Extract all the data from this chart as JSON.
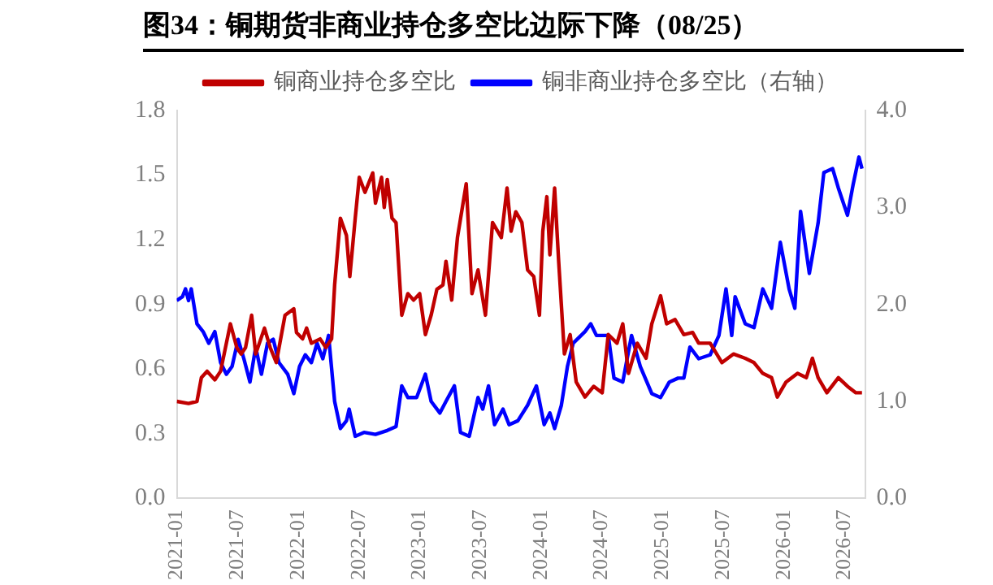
{
  "chart_data": {
    "type": "line",
    "title": "图34：铜期货非商业持仓多空比边际下降（08/25）",
    "xlim": [
      "2021-01",
      "2026-09"
    ],
    "xticks": [
      "2021-01",
      "2021-07",
      "2022-01",
      "2022-07",
      "2023-01",
      "2023-07",
      "2024-01",
      "2024-07",
      "2025-01",
      "2025-07",
      "2026-01",
      "2026-07"
    ],
    "ylim": [
      0,
      1.8
    ],
    "yticks": [
      {
        "value": 0,
        "label": "0.0"
      },
      0.3,
      0.6,
      0.9,
      1.2,
      1.5,
      1.8
    ],
    "y2lim": [
      0,
      4
    ],
    "y2ticks": [
      {
        "value": 0,
        "label": "0.0"
      },
      {
        "value": 1,
        "label": "1.0"
      },
      {
        "value": 2,
        "label": "2.0"
      },
      {
        "value": 3,
        "label": "3.0"
      },
      {
        "value": 4,
        "label": "4.0"
      }
    ],
    "legend": "top",
    "grid": false,
    "marker": "none",
    "series": [
      {
        "name": "铜商业持仓多空比",
        "color": "#c00000",
        "x": [
          "2021-01-01",
          "2021-02-06",
          "2021-03-01",
          "2021-03-14",
          "2021-04-01",
          "2021-04-24",
          "2021-05-11",
          "2021-06-10",
          "2021-06-29",
          "2021-07-12",
          "2021-07-25",
          "2021-08-13",
          "2021-08-25",
          "2021-09-21",
          "2021-10-08",
          "2021-10-26",
          "2021-11-22",
          "2021-12-18",
          "2021-12-26",
          "2022-01-14",
          "2022-01-26",
          "2022-02-10",
          "2022-03-06",
          "2022-03-23",
          "2022-04-10",
          "2022-04-19",
          "2022-05-06",
          "2022-05-24",
          "2022-06-04",
          "2022-06-20",
          "2022-07-02",
          "2022-07-19",
          "2022-08-12",
          "2022-08-20",
          "2022-09-08",
          "2022-09-16",
          "2022-09-25",
          "2022-10-09",
          "2022-10-21",
          "2022-11-08",
          "2022-11-26",
          "2022-12-13",
          "2022-12-31",
          "2023-01-18",
          "2023-02-05",
          "2023-02-22",
          "2023-03-10",
          "2023-03-19",
          "2023-04-06",
          "2023-04-23",
          "2023-05-19",
          "2023-06-06",
          "2023-06-24",
          "2023-07-16",
          "2023-08-07",
          "2023-09-03",
          "2023-09-20",
          "2023-10-02",
          "2023-10-16",
          "2023-11-04",
          "2023-11-21",
          "2023-12-09",
          "2023-12-26",
          "2024-01-06",
          "2024-01-18",
          "2024-01-27",
          "2024-02-11",
          "2024-02-23",
          "2024-03-10",
          "2024-03-27",
          "2024-04-15",
          "2024-05-11",
          "2024-06-07",
          "2024-07-02",
          "2024-07-20",
          "2024-08-16",
          "2024-09-03",
          "2024-09-20",
          "2024-10-16",
          "2024-11-12",
          "2024-11-29",
          "2024-12-25",
          "2025-01-13",
          "2025-02-08",
          "2025-03-04",
          "2025-03-30",
          "2025-04-18",
          "2025-05-22",
          "2025-06-27",
          "2025-08-01",
          "2025-09-06",
          "2025-10-02",
          "2025-10-28",
          "2025-11-24",
          "2025-12-11",
          "2026-01-07",
          "2026-02-11",
          "2026-03-07",
          "2026-03-25",
          "2026-04-12",
          "2026-05-08",
          "2026-06-12",
          "2026-07-09",
          "2026-08-04",
          "2026-08-22"
        ],
        "values": [
          0.45,
          0.44,
          0.45,
          0.56,
          0.59,
          0.55,
          0.59,
          0.81,
          0.7,
          0.67,
          0.7,
          0.85,
          0.67,
          0.79,
          0.7,
          0.63,
          0.85,
          0.88,
          0.77,
          0.74,
          0.79,
          0.72,
          0.74,
          0.7,
          0.74,
          0.99,
          1.3,
          1.22,
          1.03,
          1.3,
          1.49,
          1.42,
          1.51,
          1.37,
          1.49,
          1.35,
          1.48,
          1.3,
          1.28,
          0.85,
          0.95,
          0.92,
          0.95,
          0.76,
          0.85,
          0.97,
          0.99,
          1.1,
          0.92,
          1.21,
          1.46,
          0.95,
          1.06,
          0.85,
          1.28,
          1.21,
          1.44,
          1.24,
          1.33,
          1.28,
          1.06,
          1.03,
          0.85,
          1.24,
          1.4,
          1.13,
          1.44,
          1.1,
          0.67,
          0.76,
          0.54,
          0.47,
          0.52,
          0.49,
          0.76,
          0.72,
          0.81,
          0.58,
          0.72,
          0.65,
          0.81,
          0.94,
          0.81,
          0.83,
          0.76,
          0.77,
          0.72,
          0.72,
          0.63,
          0.67,
          0.65,
          0.63,
          0.58,
          0.56,
          0.47,
          0.54,
          0.58,
          0.56,
          0.65,
          0.56,
          0.49,
          0.56,
          0.52,
          0.49,
          0.49
        ]
      },
      {
        "name": "铜非商业持仓多空比（右轴）",
        "color": "#0000ff",
        "axis": "y2",
        "x": [
          "2021-01-01",
          "2021-01-18",
          "2021-01-27",
          "2021-02-06",
          "2021-02-14",
          "2021-03-01",
          "2021-03-19",
          "2021-04-06",
          "2021-04-24",
          "2021-05-11",
          "2021-05-28",
          "2021-06-15",
          "2021-07-03",
          "2021-07-20",
          "2021-08-08",
          "2021-08-25",
          "2021-09-12",
          "2021-09-30",
          "2021-10-17",
          "2021-11-04",
          "2021-11-30",
          "2021-12-18",
          "2022-01-05",
          "2022-01-22",
          "2022-02-10",
          "2022-02-27",
          "2022-03-14",
          "2022-04-01",
          "2022-04-19",
          "2022-05-06",
          "2022-05-24",
          "2022-06-02",
          "2022-06-20",
          "2022-07-16",
          "2022-08-20",
          "2022-09-25",
          "2022-10-21",
          "2022-11-08",
          "2022-11-26",
          "2022-12-22",
          "2023-01-18",
          "2023-02-05",
          "2023-03-01",
          "2023-03-19",
          "2023-04-14",
          "2023-05-02",
          "2023-05-28",
          "2023-06-24",
          "2023-07-08",
          "2023-07-25",
          "2023-08-13",
          "2023-09-08",
          "2023-09-26",
          "2023-10-22",
          "2023-11-21",
          "2023-12-17",
          "2024-01-10",
          "2024-01-27",
          "2024-02-11",
          "2024-03-01",
          "2024-03-19",
          "2024-04-06",
          "2024-05-11",
          "2024-05-28",
          "2024-06-15",
          "2024-07-02",
          "2024-07-20",
          "2024-08-07",
          "2024-09-03",
          "2024-09-29",
          "2024-10-25",
          "2024-11-29",
          "2024-12-25",
          "2025-01-21",
          "2025-02-17",
          "2025-03-04",
          "2025-03-22",
          "2025-04-18",
          "2025-05-22",
          "2025-06-18",
          "2025-07-09",
          "2025-07-26",
          "2025-08-06",
          "2025-09-06",
          "2025-10-02",
          "2025-10-28",
          "2025-11-24",
          "2025-12-20",
          "2026-01-16",
          "2026-02-03",
          "2026-02-20",
          "2026-03-16",
          "2026-04-12",
          "2026-04-29",
          "2026-05-25",
          "2026-06-12",
          "2026-07-09",
          "2026-07-26",
          "2026-08-13",
          "2026-08-22"
        ],
        "values": [
          2.04,
          2.08,
          2.16,
          2.04,
          2.16,
          1.8,
          1.72,
          1.6,
          1.72,
          1.4,
          1.28,
          1.36,
          1.64,
          1.44,
          1.2,
          1.56,
          1.28,
          1.6,
          1.64,
          1.4,
          1.28,
          1.08,
          1.36,
          1.48,
          1.4,
          1.6,
          1.44,
          1.68,
          1.0,
          0.72,
          0.8,
          0.92,
          0.64,
          0.68,
          0.66,
          0.7,
          0.74,
          1.16,
          1.04,
          1.04,
          1.28,
          1.0,
          0.88,
          1.0,
          1.16,
          0.68,
          0.64,
          1.04,
          0.92,
          1.16,
          0.76,
          0.92,
          0.76,
          0.8,
          0.96,
          1.16,
          0.76,
          0.88,
          0.72,
          0.96,
          1.36,
          1.6,
          1.72,
          1.8,
          1.68,
          1.68,
          1.68,
          1.24,
          1.2,
          1.68,
          1.36,
          1.08,
          1.04,
          1.2,
          1.24,
          1.24,
          1.56,
          1.44,
          1.48,
          1.68,
          2.16,
          1.68,
          2.08,
          1.8,
          1.76,
          2.16,
          1.96,
          2.64,
          2.16,
          1.96,
          2.96,
          2.32,
          2.84,
          3.36,
          3.4,
          3.2,
          2.92,
          3.24,
          3.52,
          3.4
        ]
      }
    ]
  }
}
